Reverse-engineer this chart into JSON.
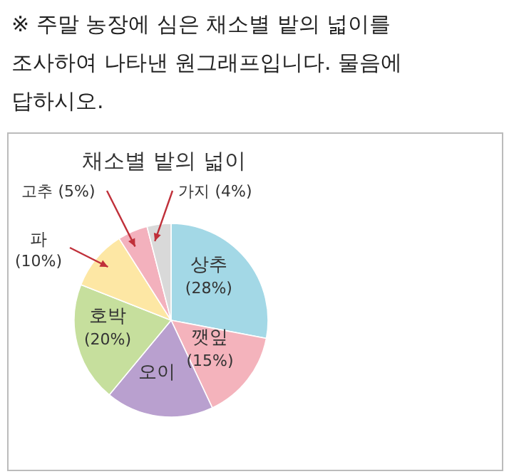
{
  "chart_data": {
    "type": "pie",
    "title": "채소별 밭의 넓이",
    "annotations": [
      "※ 주말 농장에 심은 채소별 밭의 넓이를 조사하여 나타낸 원그래프입니다. 물음에 답하시오."
    ],
    "categories": [
      "상추",
      "깻잎",
      "오이",
      "호박",
      "파",
      "고추",
      "가지"
    ],
    "values": [
      28,
      15,
      18,
      20,
      10,
      5,
      4
    ],
    "value_labels": [
      "(28%)",
      "(15%)",
      null,
      "(20%)",
      "(10%)",
      "(5%)",
      "(4%)"
    ],
    "colors": [
      "#a3d8e6",
      "#f4b3bc",
      "#b9a0cf",
      "#c6df9d",
      "#fde7a4",
      "#f3b1bd",
      "#d9d9d9"
    ]
  }
}
